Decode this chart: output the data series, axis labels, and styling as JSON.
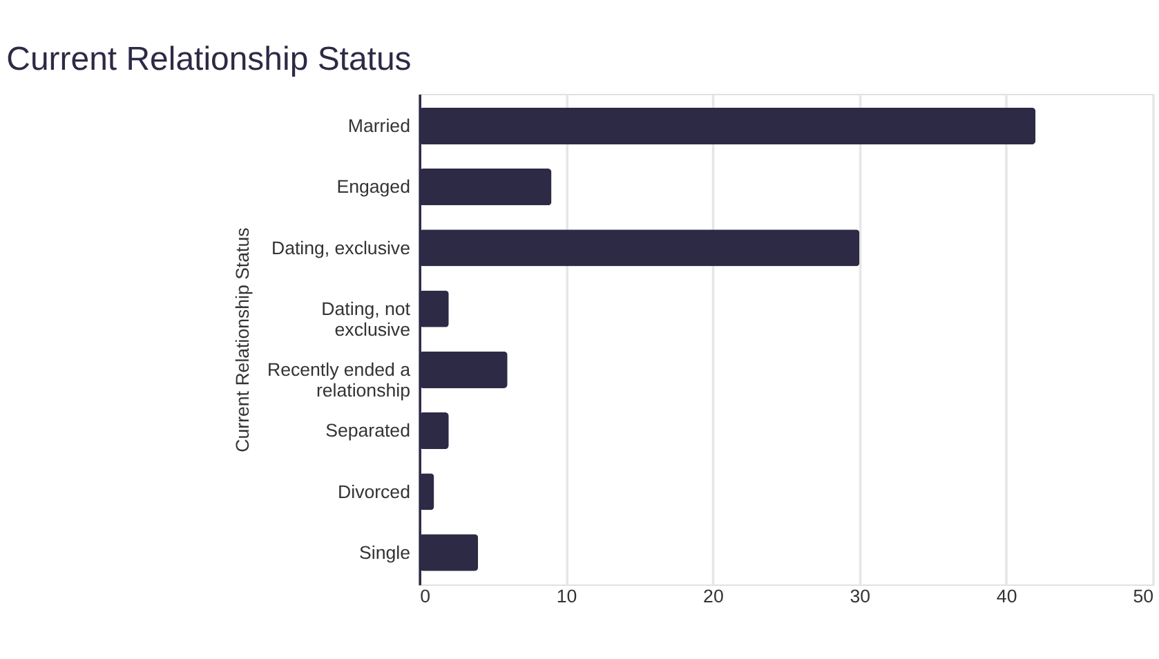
{
  "chart_data": {
    "type": "bar",
    "orientation": "horizontal",
    "title": "Current Relationship Status",
    "ylabel": "Current Relationship Status",
    "categories": [
      "Married",
      "Engaged",
      "Dating, exclusive",
      "Dating, not exclusive",
      "Recently ended a relationship",
      "Separated",
      "Divorced",
      "Single"
    ],
    "values": [
      42,
      9,
      30,
      2,
      6,
      2,
      1,
      4
    ],
    "color": "#2d2a45",
    "xlim": [
      0,
      50
    ],
    "xticks": [
      0,
      10,
      20,
      30,
      40,
      50
    ],
    "grid": "x"
  }
}
